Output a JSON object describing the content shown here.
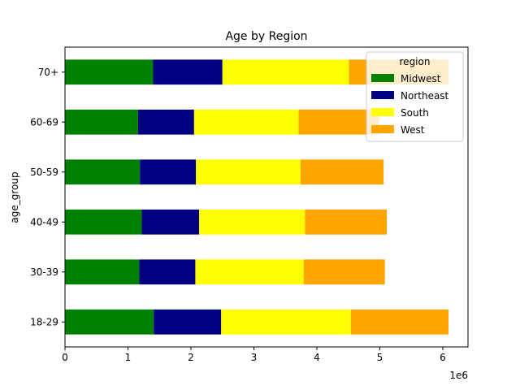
{
  "chart_data": {
    "type": "bar",
    "orientation": "horizontal",
    "stacked": true,
    "title": "Age by Region",
    "xlabel": "",
    "ylabel": "age_group",
    "x_offset_label": "1e6",
    "xlim": [
      0,
      6.4
    ],
    "x_ticks": [
      0,
      1,
      2,
      3,
      4,
      5,
      6
    ],
    "categories": [
      "18-29",
      "30-39",
      "40-49",
      "50-59",
      "60-69",
      "70+"
    ],
    "series": [
      {
        "name": "Midwest",
        "color": "#008000",
        "values": [
          1.41,
          1.18,
          1.22,
          1.19,
          1.16,
          1.4
        ]
      },
      {
        "name": "Northeast",
        "color": "#000080",
        "values": [
          1.07,
          0.89,
          0.91,
          0.89,
          0.89,
          1.1
        ]
      },
      {
        "name": "South",
        "color": "#ffff00",
        "values": [
          2.06,
          1.72,
          1.68,
          1.66,
          1.66,
          2.01
        ]
      },
      {
        "name": "West",
        "color": "#ffa500",
        "values": [
          1.55,
          1.29,
          1.3,
          1.32,
          1.28,
          1.58
        ]
      }
    ],
    "legend": {
      "title": "region",
      "placement": "top-right"
    },
    "grid": false
  }
}
